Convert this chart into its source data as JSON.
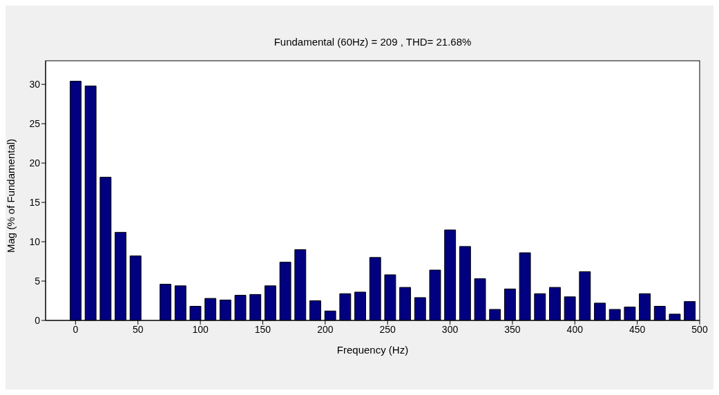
{
  "chart_data": {
    "type": "bar",
    "title": "Fundamental (60Hz) = 209 , THD= 21.68%",
    "xlabel": "Frequency (Hz)",
    "ylabel": "Mag (% of Fundamental)",
    "x": [
      0,
      12,
      24,
      36,
      48,
      60,
      72,
      84,
      96,
      108,
      120,
      132,
      144,
      156,
      168,
      180,
      192,
      204,
      216,
      228,
      240,
      252,
      264,
      276,
      288,
      300,
      312,
      324,
      336,
      348,
      360,
      372,
      384,
      396,
      408,
      420,
      432,
      444,
      456,
      468,
      480,
      492
    ],
    "values": [
      30.4,
      29.8,
      18.2,
      11.2,
      8.2,
      null,
      4.6,
      4.4,
      1.8,
      2.8,
      2.6,
      3.2,
      3.3,
      4.4,
      7.4,
      9.0,
      2.5,
      1.2,
      3.4,
      3.6,
      8.0,
      5.8,
      4.2,
      2.9,
      6.4,
      11.5,
      9.4,
      5.3,
      1.4,
      4.0,
      8.6,
      3.4,
      4.2,
      3.0,
      6.2,
      2.2,
      1.4,
      1.7,
      3.4,
      1.8,
      0.8,
      2.4
    ],
    "color": "#000080",
    "xlim": [
      -24,
      500
    ],
    "xticks": [
      0,
      50,
      100,
      150,
      200,
      250,
      300,
      350,
      400,
      450,
      500
    ],
    "ylim": [
      0,
      33
    ],
    "yticks": [
      0,
      5,
      10,
      15,
      20,
      25,
      30
    ],
    "grid": false,
    "legend": false
  }
}
